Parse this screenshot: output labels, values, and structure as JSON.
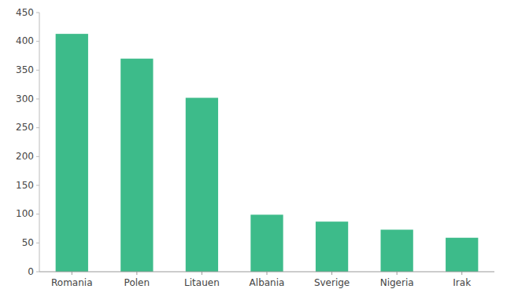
{
  "chart_data": {
    "type": "bar",
    "categories": [
      "Romania",
      "Polen",
      "Litauen",
      "Albania",
      "Sverige",
      "Nigeria",
      "Irak"
    ],
    "values": [
      413,
      370,
      302,
      99,
      87,
      73,
      59
    ],
    "color": "#3dbb8a",
    "ylim": [
      0,
      450
    ],
    "yticks": [
      0,
      50,
      100,
      150,
      200,
      250,
      300,
      350,
      400,
      450
    ],
    "grid": false
  }
}
